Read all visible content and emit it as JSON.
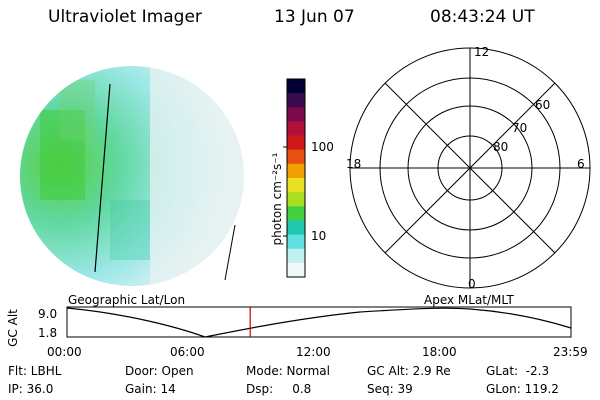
{
  "header": {
    "instrument": "Ultraviolet Imager",
    "date": "13 Jun 07",
    "time": "08:43:24 UT"
  },
  "colorbar": {
    "unit_label": "photon cm⁻²s⁻¹",
    "ticks": [
      "100",
      "10"
    ],
    "colors": [
      "#000033",
      "#3a0a50",
      "#7a0a4a",
      "#b0103a",
      "#d01a1a",
      "#e85010",
      "#f0a000",
      "#e8e020",
      "#a8e020",
      "#40d040",
      "#20c8b0",
      "#60e0e0",
      "#c0f0f0",
      "#f0f8f8"
    ]
  },
  "polar_grid": {
    "mlt_labels": [
      "12",
      "18",
      "6",
      "0"
    ],
    "lat_labels": [
      "60",
      "70",
      "80"
    ]
  },
  "timeline": {
    "left_title": "Geographic Lat/Lon",
    "right_title": "Apex MLat/MLT",
    "y_axis_label": "GC Alt",
    "y_ticks": [
      "9.0",
      "1.8"
    ],
    "x_ticks": [
      "00:00",
      "06:00",
      "12:00",
      "18:00",
      "23:59"
    ],
    "marker_time": "08:43",
    "marker_color": "#cc0000"
  },
  "footer": {
    "row1": {
      "flt": "Flt: LBHL",
      "door": "Door: Open",
      "mode": "Mode: Normal",
      "gc_alt": "GC Alt: 2.9 Re",
      "glat": "GLat:  -2.3"
    },
    "row2": {
      "ip": "IP: 36.0",
      "gain": "Gain: 14",
      "dsp": "Dsp:     0.8",
      "seq": "Seq: 39",
      "glon": "GLon: 119.2"
    }
  }
}
